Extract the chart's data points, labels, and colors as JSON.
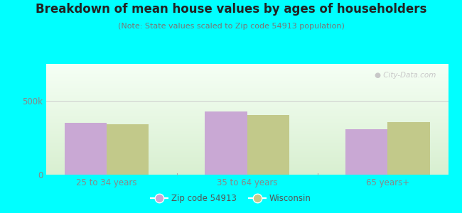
{
  "title": "Breakdown of mean house values by ages of householders",
  "subtitle": "(Note: State values scaled to Zip code 54913 population)",
  "categories": [
    "25 to 34 years",
    "35 to 64 years",
    "65 years+"
  ],
  "zip_values": [
    350000,
    430000,
    310000
  ],
  "wi_values": [
    340000,
    405000,
    355000
  ],
  "zip_color": "#c9a8d4",
  "wi_color": "#c2c98a",
  "yticks": [
    0,
    500000
  ],
  "ytick_labels": [
    "0",
    "500k"
  ],
  "ylim": [
    0,
    750000
  ],
  "grad_top": "#f5fff5",
  "grad_bottom": "#d8efd0",
  "outer_bg": "#00ffff",
  "legend_zip_label": "Zip code 54913",
  "legend_wi_label": "Wisconsin",
  "bar_width": 0.3,
  "title_fontsize": 12,
  "subtitle_fontsize": 8,
  "axis_label_fontsize": 8.5,
  "tick_fontsize": 8.5,
  "legend_fontsize": 8.5
}
